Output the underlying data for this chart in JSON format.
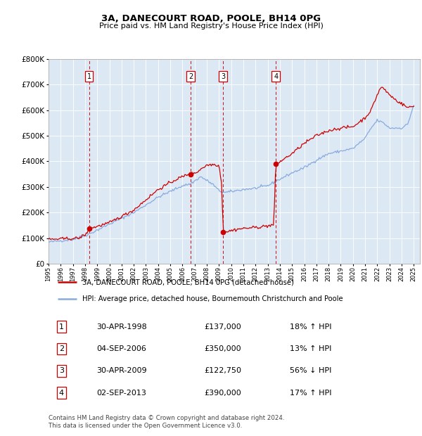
{
  "title": "3A, DANECOURT ROAD, POOLE, BH14 0PG",
  "subtitle": "Price paid vs. HM Land Registry's House Price Index (HPI)",
  "background_color": "#dce9f5",
  "ylim": [
    0,
    800000
  ],
  "yticks": [
    0,
    100000,
    200000,
    300000,
    400000,
    500000,
    600000,
    700000,
    800000
  ],
  "x_start_year": 1995,
  "x_end_year": 2025,
  "transactions": [
    {
      "id": 1,
      "date": "30-APR-1998",
      "year": 1998.33,
      "price": 137000,
      "pct": "18%",
      "dir": "↑"
    },
    {
      "id": 2,
      "date": "04-SEP-2006",
      "year": 2006.67,
      "price": 350000,
      "pct": "13%",
      "dir": "↑"
    },
    {
      "id": 3,
      "date": "30-APR-2009",
      "year": 2009.33,
      "price": 122750,
      "pct": "56%",
      "dir": "↓"
    },
    {
      "id": 4,
      "date": "02-SEP-2013",
      "year": 2013.67,
      "price": 390000,
      "pct": "17%",
      "dir": "↑"
    }
  ],
  "legend_entries": [
    "3A, DANECOURT ROAD, POOLE, BH14 0PG (detached house)",
    "HPI: Average price, detached house, Bournemouth Christchurch and Poole"
  ],
  "footer": "Contains HM Land Registry data © Crown copyright and database right 2024.\nThis data is licensed under the Open Government Licence v3.0.",
  "hpi_color": "#88aadd",
  "price_color": "#cc0000",
  "vline_color": "#cc0000",
  "grid_color": "#ffffff",
  "table_rows": [
    [
      1,
      "30-APR-1998",
      "£137,000",
      "18% ↑ HPI"
    ],
    [
      2,
      "04-SEP-2006",
      "£350,000",
      "13% ↑ HPI"
    ],
    [
      3,
      "30-APR-2009",
      "£122,750",
      "56% ↓ HPI"
    ],
    [
      4,
      "02-SEP-2013",
      "£390,000",
      "17% ↑ HPI"
    ]
  ],
  "hpi_keypoints": [
    [
      1995.0,
      85000
    ],
    [
      1997.0,
      95000
    ],
    [
      1998.33,
      116000
    ],
    [
      2000.0,
      155000
    ],
    [
      2002.0,
      200000
    ],
    [
      2004.0,
      260000
    ],
    [
      2006.0,
      305000
    ],
    [
      2006.67,
      312000
    ],
    [
      2007.5,
      340000
    ],
    [
      2008.5,
      310000
    ],
    [
      2009.0,
      285000
    ],
    [
      2009.5,
      278000
    ],
    [
      2011.0,
      290000
    ],
    [
      2012.0,
      295000
    ],
    [
      2013.0,
      305000
    ],
    [
      2013.67,
      322000
    ],
    [
      2015.0,
      355000
    ],
    [
      2016.0,
      375000
    ],
    [
      2017.0,
      405000
    ],
    [
      2018.0,
      430000
    ],
    [
      2019.0,
      440000
    ],
    [
      2020.0,
      450000
    ],
    [
      2021.0,
      490000
    ],
    [
      2021.5,
      530000
    ],
    [
      2022.0,
      560000
    ],
    [
      2022.5,
      550000
    ],
    [
      2023.0,
      530000
    ],
    [
      2024.0,
      530000
    ],
    [
      2024.5,
      545000
    ],
    [
      2025.0,
      620000
    ]
  ],
  "price_keypoints": [
    [
      1995.0,
      95000
    ],
    [
      1996.5,
      98000
    ],
    [
      1997.5,
      100000
    ],
    [
      1998.2,
      120000
    ],
    [
      1998.33,
      137000
    ],
    [
      1998.5,
      139000
    ],
    [
      2000.0,
      160000
    ],
    [
      2002.0,
      210000
    ],
    [
      2004.0,
      290000
    ],
    [
      2005.5,
      330000
    ],
    [
      2006.0,
      340000
    ],
    [
      2006.5,
      350000
    ],
    [
      2006.67,
      350000
    ],
    [
      2006.8,
      352000
    ],
    [
      2007.2,
      358000
    ],
    [
      2007.5,
      370000
    ],
    [
      2008.0,
      385000
    ],
    [
      2008.5,
      388000
    ],
    [
      2009.0,
      385000
    ],
    [
      2009.25,
      300000
    ],
    [
      2009.33,
      122750
    ],
    [
      2009.4,
      122750
    ],
    [
      2009.6,
      125000
    ],
    [
      2010.5,
      135000
    ],
    [
      2011.0,
      138000
    ],
    [
      2012.0,
      142000
    ],
    [
      2013.0,
      148000
    ],
    [
      2013.5,
      152000
    ],
    [
      2013.67,
      390000
    ],
    [
      2013.8,
      392000
    ],
    [
      2015.0,
      430000
    ],
    [
      2016.0,
      470000
    ],
    [
      2017.0,
      500000
    ],
    [
      2018.0,
      520000
    ],
    [
      2019.0,
      530000
    ],
    [
      2020.0,
      535000
    ],
    [
      2021.0,
      570000
    ],
    [
      2021.5,
      600000
    ],
    [
      2022.0,
      660000
    ],
    [
      2022.3,
      690000
    ],
    [
      2022.5,
      685000
    ],
    [
      2022.8,
      670000
    ],
    [
      2023.0,
      660000
    ],
    [
      2023.5,
      640000
    ],
    [
      2024.0,
      625000
    ],
    [
      2024.5,
      610000
    ],
    [
      2025.0,
      615000
    ]
  ]
}
